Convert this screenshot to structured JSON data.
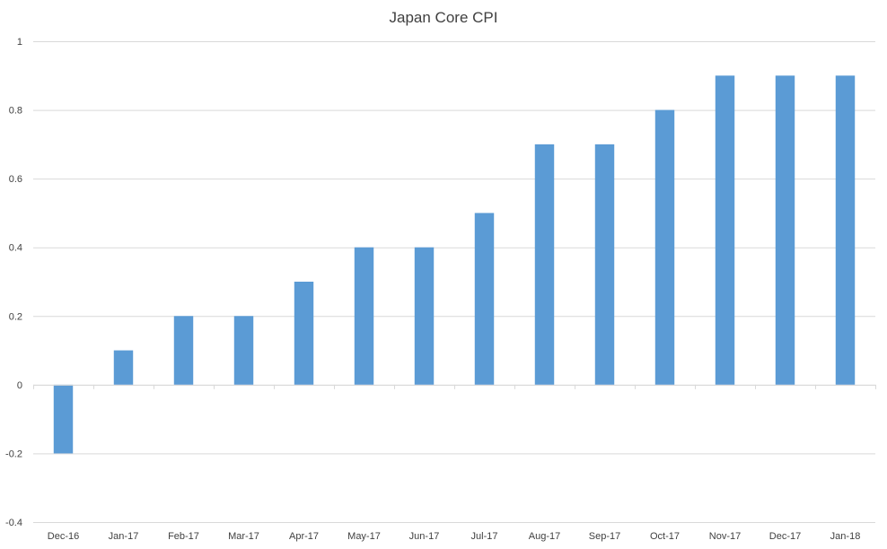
{
  "chart_data": {
    "type": "bar",
    "title": "Japan Core CPI",
    "xlabel": "",
    "ylabel": "",
    "categories": [
      "Dec-16",
      "Jan-17",
      "Feb-17",
      "Mar-17",
      "Apr-17",
      "May-17",
      "Jun-17",
      "Jul-17",
      "Aug-17",
      "Sep-17",
      "Oct-17",
      "Nov-17",
      "Dec-17",
      "Jan-18"
    ],
    "values": [
      -0.2,
      0.1,
      0.2,
      0.2,
      0.3,
      0.4,
      0.4,
      0.5,
      0.7,
      0.7,
      0.8,
      0.9,
      0.9,
      0.9
    ],
    "ylim": [
      -0.4,
      1
    ],
    "yticks": [
      -0.4,
      -0.2,
      0,
      0.2,
      0.4,
      0.6,
      0.8,
      1
    ],
    "ytick_labels": [
      "-0.4",
      "-0.2",
      "0",
      "0.2",
      "0.4",
      "0.6",
      "0.8",
      "1"
    ],
    "grid": true,
    "legend": "none",
    "bar_color": "#5b9bd5",
    "grid_color": "#d9d9d9",
    "text_color": "#404040"
  }
}
